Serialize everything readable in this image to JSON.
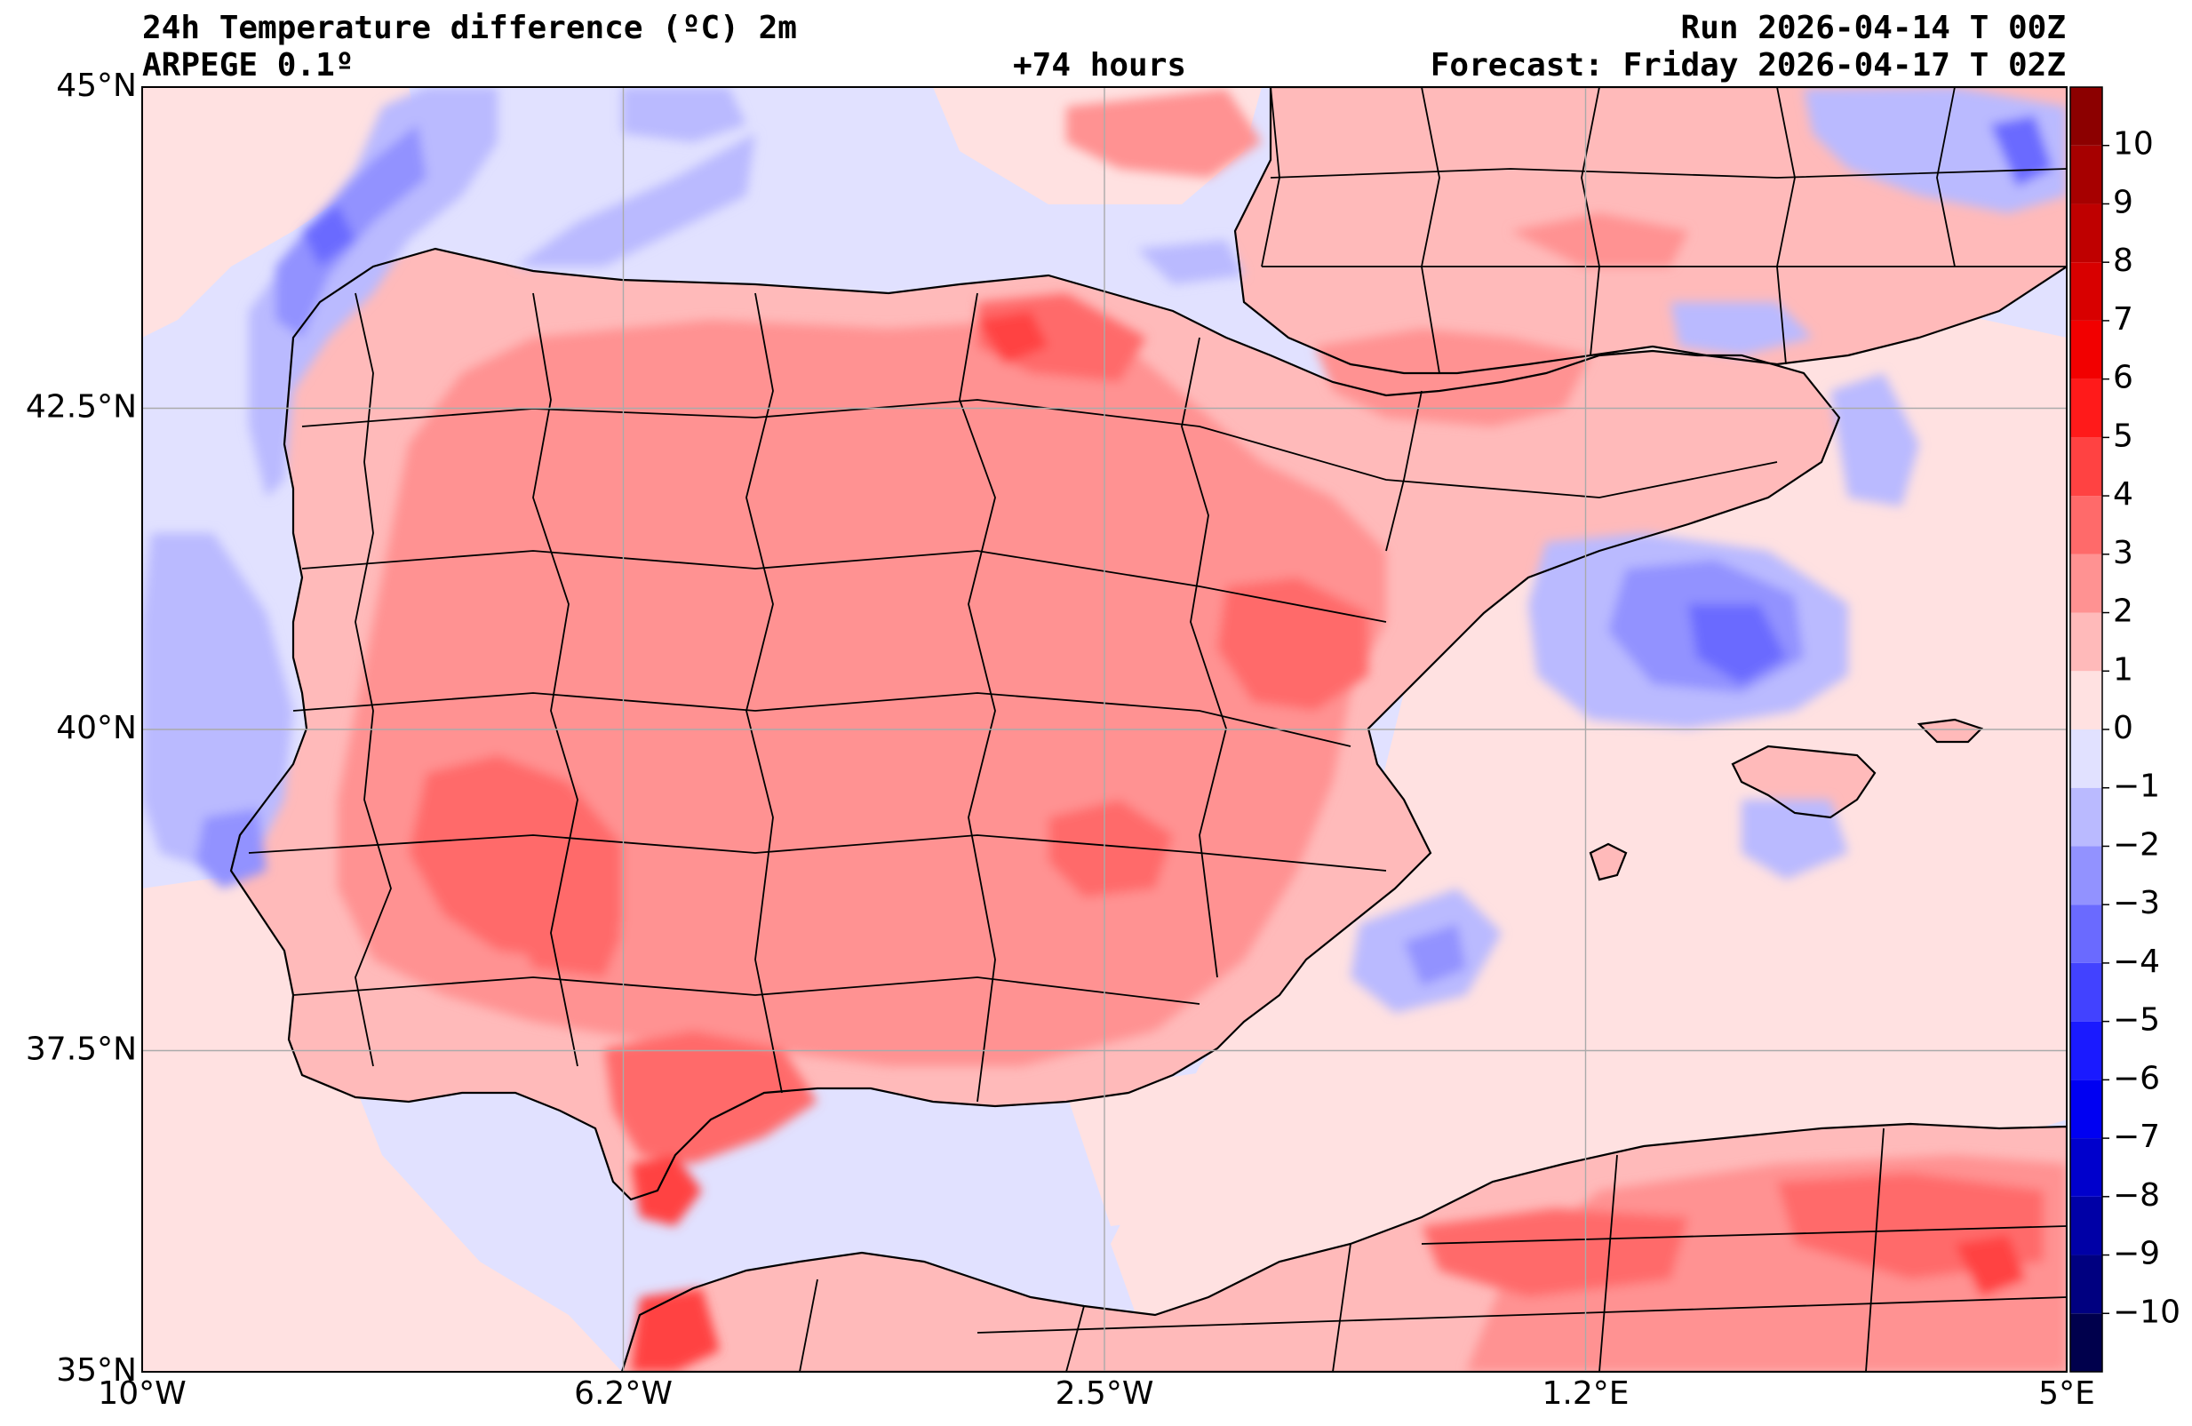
{
  "header": {
    "title": "24h Temperature difference (ºC) 2m",
    "model": "ARPEGE 0.1º",
    "lead_time": "+74 hours",
    "run": "Run 2026-04-14 T 00Z",
    "forecast": "Forecast: Friday 2026-04-17 T 02Z"
  },
  "map": {
    "lon_range": [
      -10,
      5
    ],
    "lat_range": [
      35,
      45
    ],
    "lat_ticks": [
      {
        "value": 45,
        "label": "45°N"
      },
      {
        "value": 42.5,
        "label": "42.5°N"
      },
      {
        "value": 40,
        "label": "40°N"
      },
      {
        "value": 37.5,
        "label": "37.5°N"
      },
      {
        "value": 35,
        "label": "35°N"
      }
    ],
    "lon_ticks": [
      {
        "value": -10,
        "label": "10°W"
      },
      {
        "value": -6.25,
        "label": "6.2°W"
      },
      {
        "value": -2.5,
        "label": "2.5°W"
      },
      {
        "value": 1.25,
        "label": "1.2°E"
      },
      {
        "value": 5,
        "label": "5°E"
      }
    ]
  },
  "colorbar": {
    "levels": [
      -11,
      -10,
      -9,
      -8,
      -7,
      -6,
      -5,
      -4,
      -3,
      -2,
      -1,
      0,
      1,
      2,
      3,
      4,
      5,
      6,
      7,
      8,
      9,
      10,
      11
    ],
    "labels": [
      "−10",
      "−9",
      "−8",
      "−7",
      "−6",
      "−5",
      "−4",
      "−3",
      "−2",
      "−1",
      "0",
      "1",
      "2",
      "3",
      "4",
      "5",
      "6",
      "7",
      "8",
      "9",
      "10"
    ],
    "label_values": [
      -10,
      -9,
      -8,
      -7,
      -6,
      -5,
      -4,
      -3,
      -2,
      -1,
      0,
      1,
      2,
      3,
      4,
      5,
      6,
      7,
      8,
      9,
      10
    ],
    "colors": [
      "#00004c",
      "#000080",
      "#0000a6",
      "#0000cc",
      "#0000f2",
      "#1a1aff",
      "#4242ff",
      "#6a6aff",
      "#9292ff",
      "#babaff",
      "#e1e1ff",
      "#ffe1e1",
      "#ffbaba",
      "#ff9292",
      "#ff6a6a",
      "#ff4242",
      "#ff1a1a",
      "#f20000",
      "#d80000",
      "#bf0000",
      "#a60000",
      "#8c0000"
    ]
  },
  "colors": {
    "ocean_base": "#e1e1ff",
    "land_base": "#ffbaba",
    "coast": "#000000",
    "grid": "#aaaaaa"
  }
}
